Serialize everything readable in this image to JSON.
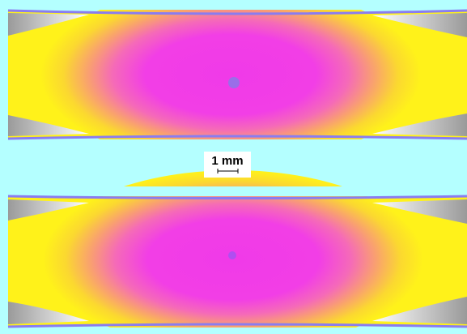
{
  "scale_bar": {
    "label": "1 mm"
  }
}
